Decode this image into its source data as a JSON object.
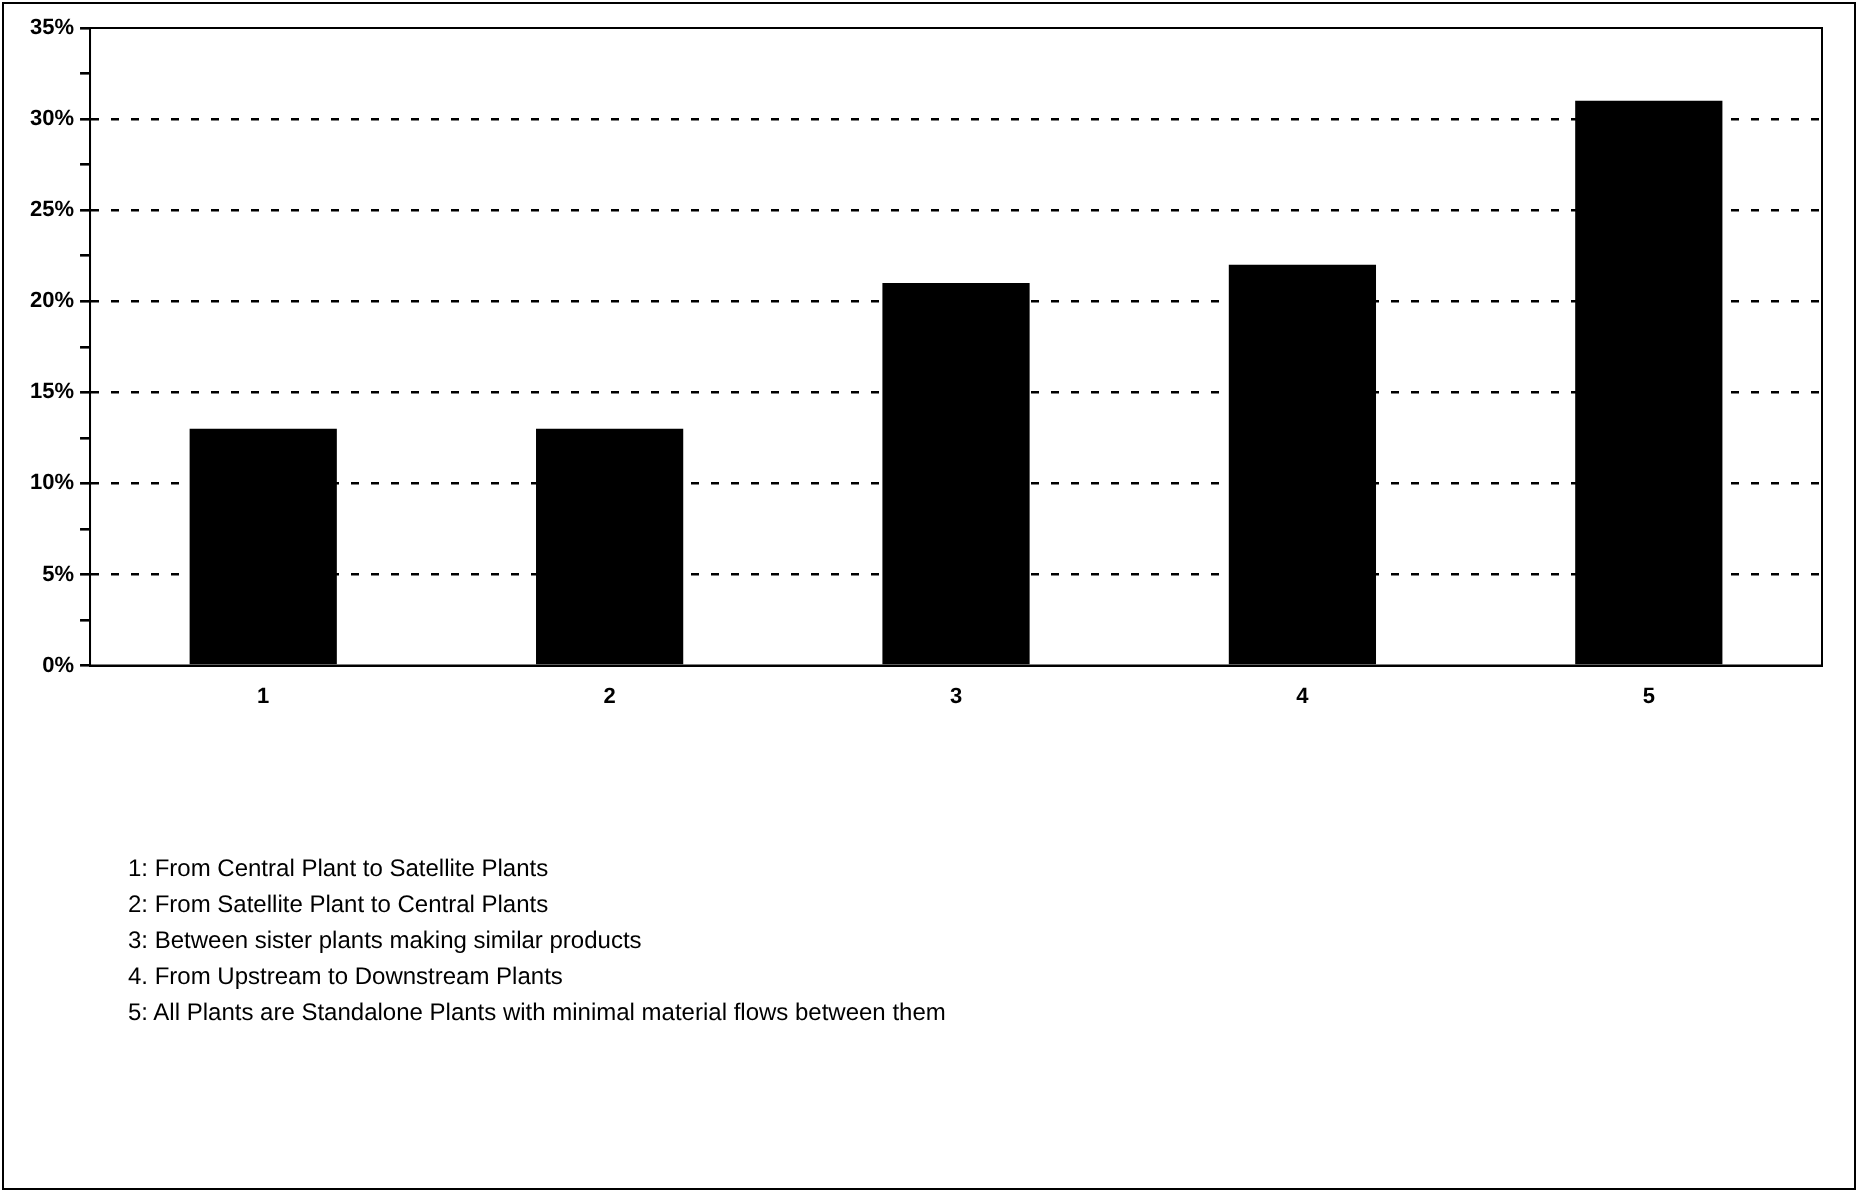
{
  "chart_data": {
    "type": "bar",
    "categories": [
      "1",
      "2",
      "3",
      "4",
      "5"
    ],
    "values": [
      13,
      13,
      21,
      22,
      31
    ],
    "color": "#000000",
    "ylim": [
      0,
      35
    ],
    "yticks": [
      {
        "value": 0,
        "label": "0%"
      },
      {
        "value": 2.5,
        "label": null
      },
      {
        "value": 5,
        "label": "5%"
      },
      {
        "value": 7.5,
        "label": null
      },
      {
        "value": 10,
        "label": "10%"
      },
      {
        "value": 12.5,
        "label": null
      },
      {
        "value": 15,
        "label": "15%"
      },
      {
        "value": 17.5,
        "label": null
      },
      {
        "value": 20,
        "label": "20%"
      },
      {
        "value": 22.5,
        "label": null
      },
      {
        "value": 25,
        "label": "25%"
      },
      {
        "value": 27.5,
        "label": null
      },
      {
        "value": 30,
        "label": "30%"
      },
      {
        "value": 32.5,
        "label": null
      },
      {
        "value": 35,
        "label": "35%"
      }
    ],
    "grid": "y",
    "line_style": "dashed",
    "legend": false,
    "annotations": [
      "1: From Central Plant to Satellite Plants",
      "2: From Satellite Plant to Central Plants",
      "3: Between sister plants making similar products",
      "4. From Upstream to Downstream Plants",
      "5: All Plants are Standalone Plants with minimal material flows between them"
    ]
  }
}
